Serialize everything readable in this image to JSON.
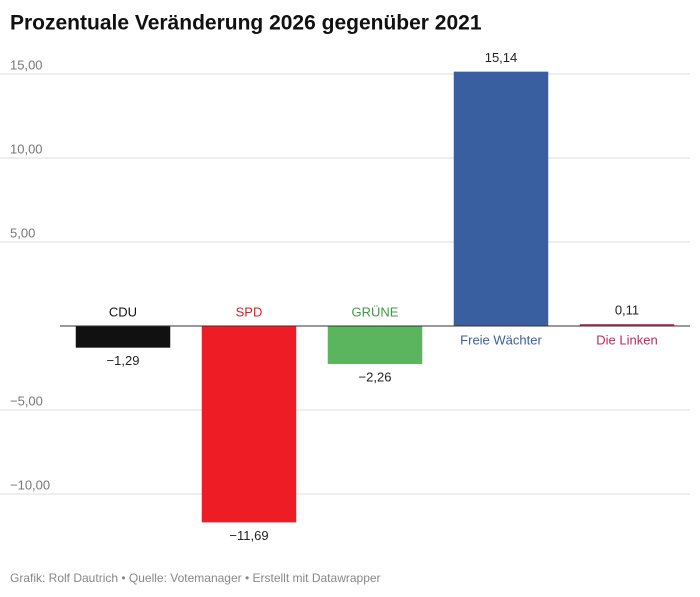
{
  "chart_data": {
    "type": "bar",
    "title": "Prozentuale Veränderung 2026 gegenüber 2021",
    "categories": [
      "CDU",
      "SPD",
      "GRÜNE",
      "Freie Wächter",
      "Die Linken"
    ],
    "values": [
      -1.29,
      -11.69,
      -2.26,
      15.14,
      0.11
    ],
    "value_labels": [
      "−1,29",
      "−11,69",
      "−2,26",
      "15,14",
      "0,11"
    ],
    "colors": [
      "#111111",
      "#ee1c25",
      "#5ab55e",
      "#3a5fa0",
      "#c0285c"
    ],
    "label_colors": [
      "#111111",
      "#d81e26",
      "#3f9a44",
      "#3a5fa0",
      "#c0285c"
    ],
    "ylim": [
      -12,
      16
    ],
    "yticks": [
      {
        "value": -10,
        "label": "−10,00"
      },
      {
        "value": -5,
        "label": "−5,00"
      },
      {
        "value": 5,
        "label": "5,00"
      },
      {
        "value": 10,
        "label": "10,00"
      },
      {
        "value": 15,
        "label": "15,00"
      }
    ],
    "grid": true,
    "footer": "Grafik: Rolf Dautrich • Quelle: Votemanager • Erstellt mit Datawrapper"
  }
}
